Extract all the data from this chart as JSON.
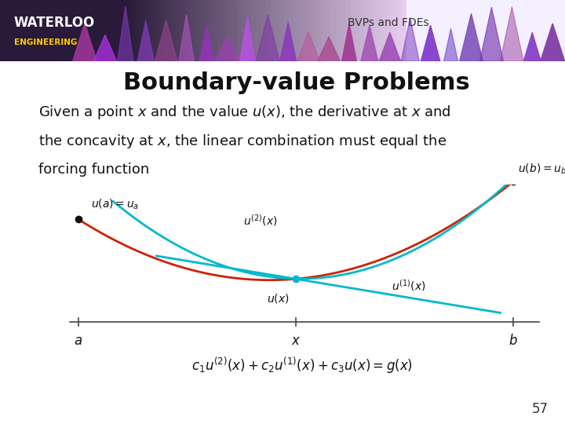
{
  "title": "Boundary-value Problems",
  "subtitle": "BVPs and FDEs",
  "bg_color": "#ffffff",
  "title_fontsize": 22,
  "subtitle_fontsize": 10,
  "body_text_line1": "Given a point ",
  "body_text_line2": "the concavity at ",
  "body_text_line3": "forcing function",
  "body_fontsize": 13,
  "slide_number": "57",
  "curve_color_red": "#cc2200",
  "curve_color_cyan": "#00b8cc",
  "axis_color": "#444444",
  "dot_color_dark": "#111111",
  "dot_color_cyan": "#00b8cc",
  "waterloo_text_color": "#ffffff",
  "engineering_text_color": "#ffcc00",
  "header_dark_color": "#1a1a2e",
  "header_purple_color": "#9966bb",
  "header_light_color": "#f0e8ff"
}
